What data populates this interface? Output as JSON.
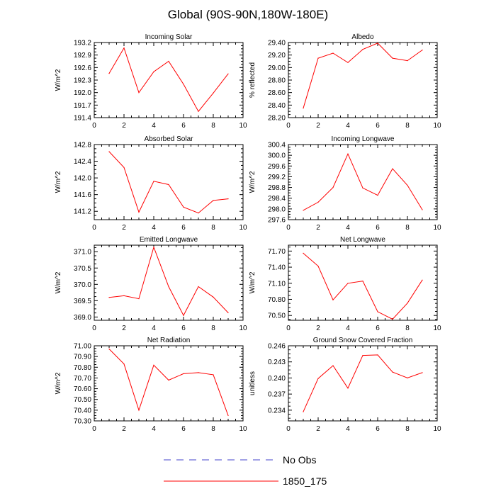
{
  "figure_title": "Global (90S-90N,180W-180E)",
  "legend": [
    {
      "label": "No Obs",
      "color": "#4444cc",
      "style": "dashed"
    },
    {
      "label": "1850_175",
      "color": "#ff0000",
      "style": "solid"
    }
  ],
  "chart_data": [
    {
      "type": "line",
      "title": "Incoming Solar",
      "xlabel": "",
      "ylabel": "W/m^2",
      "xlim": [
        0,
        10
      ],
      "ylim": [
        191.4,
        193.2
      ],
      "xticks": [
        0,
        2,
        4,
        6,
        8,
        10
      ],
      "yticks": [
        191.4,
        191.7,
        192.0,
        192.3,
        192.6,
        192.9,
        193.2
      ],
      "ytick_labels": [
        "191.4",
        "191.7",
        "192.0",
        "192.3",
        "192.6",
        "192.9",
        "193.2"
      ],
      "x": [
        1,
        2,
        3,
        4,
        5,
        6,
        7,
        8,
        9
      ],
      "series": [
        {
          "name": "1850_175",
          "values": [
            192.46,
            193.07,
            192.0,
            192.5,
            192.75,
            192.2,
            191.55,
            191.99,
            192.45
          ]
        }
      ]
    },
    {
      "type": "line",
      "title": "Albedo",
      "xlabel": "",
      "ylabel": "% reflected",
      "xlim": [
        0,
        10
      ],
      "ylim": [
        28.2,
        29.4
      ],
      "xticks": [
        0,
        2,
        4,
        6,
        8,
        10
      ],
      "yticks": [
        28.2,
        28.4,
        28.6,
        28.8,
        29.0,
        29.2,
        29.4
      ],
      "ytick_labels": [
        "28.20",
        "28.40",
        "28.60",
        "28.80",
        "29.00",
        "29.20",
        "29.40"
      ],
      "x": [
        1,
        2,
        3,
        4,
        5,
        6,
        7,
        8,
        9
      ],
      "series": [
        {
          "name": "1850_175",
          "values": [
            28.35,
            29.15,
            29.23,
            29.08,
            29.29,
            29.39,
            29.15,
            29.11,
            29.28
          ]
        }
      ]
    },
    {
      "type": "line",
      "title": "Absorbed Solar",
      "xlabel": "",
      "ylabel": "W/m^2",
      "xlim": [
        0,
        10
      ],
      "ylim": [
        141.0,
        142.8
      ],
      "xticks": [
        0,
        2,
        4,
        6,
        8,
        10
      ],
      "yticks": [
        141.2,
        141.6,
        142.0,
        142.4,
        142.8
      ],
      "ytick_labels": [
        "141.2",
        "141.6",
        "142.0",
        "142.4",
        "142.8"
      ],
      "x": [
        1,
        2,
        3,
        4,
        5,
        6,
        7,
        8,
        9
      ],
      "series": [
        {
          "name": "1850_175",
          "values": [
            142.63,
            142.25,
            141.18,
            141.92,
            141.84,
            141.3,
            141.16,
            141.46,
            141.5
          ]
        }
      ]
    },
    {
      "type": "line",
      "title": "Incoming Longwave",
      "xlabel": "",
      "ylabel": "W/m^2",
      "xlim": [
        0,
        10
      ],
      "ylim": [
        297.6,
        300.4
      ],
      "xticks": [
        0,
        2,
        4,
        6,
        8,
        10
      ],
      "yticks": [
        297.6,
        298.0,
        298.4,
        298.8,
        299.2,
        299.6,
        300.0,
        300.4
      ],
      "ytick_labels": [
        "297.6",
        "298.0",
        "298.4",
        "298.8",
        "299.2",
        "299.6",
        "300.0",
        "300.4"
      ],
      "x": [
        1,
        2,
        3,
        4,
        5,
        6,
        7,
        8,
        9
      ],
      "series": [
        {
          "name": "1850_175",
          "values": [
            297.95,
            298.25,
            298.8,
            300.05,
            298.78,
            298.51,
            299.5,
            298.88,
            297.97
          ]
        }
      ]
    },
    {
      "type": "line",
      "title": "Emitted Longwave",
      "xlabel": "",
      "ylabel": "W/m^2",
      "xlim": [
        0,
        10
      ],
      "ylim": [
        368.9,
        371.2
      ],
      "xticks": [
        0,
        2,
        4,
        6,
        8,
        10
      ],
      "yticks": [
        369.0,
        369.5,
        370.0,
        370.5,
        371.0
      ],
      "ytick_labels": [
        "369.0",
        "369.5",
        "370.0",
        "370.5",
        "371.0"
      ],
      "x": [
        1,
        2,
        3,
        4,
        5,
        6,
        7,
        8,
        9
      ],
      "series": [
        {
          "name": "1850_175",
          "values": [
            369.6,
            369.65,
            369.56,
            371.14,
            369.93,
            369.05,
            369.93,
            369.61,
            369.13
          ]
        }
      ]
    },
    {
      "type": "line",
      "title": "Net Longwave",
      "xlabel": "",
      "ylabel": "W/m^2",
      "xlim": [
        0,
        10
      ],
      "ylim": [
        70.41,
        71.81
      ],
      "xticks": [
        0,
        2,
        4,
        6,
        8,
        10
      ],
      "yticks": [
        70.5,
        70.8,
        71.1,
        71.4,
        71.7
      ],
      "ytick_labels": [
        "70.50",
        "70.80",
        "71.10",
        "71.40",
        "71.70"
      ],
      "x": [
        1,
        2,
        3,
        4,
        5,
        6,
        7,
        8,
        9
      ],
      "series": [
        {
          "name": "1850_175",
          "values": [
            71.66,
            71.42,
            70.79,
            71.1,
            71.14,
            70.57,
            70.43,
            70.73,
            71.16
          ]
        }
      ]
    },
    {
      "type": "line",
      "title": "Net Radiation",
      "xlabel": "",
      "ylabel": "W/m^2",
      "xlim": [
        0,
        10
      ],
      "ylim": [
        70.3,
        71.0
      ],
      "xticks": [
        0,
        2,
        4,
        6,
        8,
        10
      ],
      "yticks": [
        70.3,
        70.4,
        70.5,
        70.6,
        70.7,
        70.8,
        70.9,
        71.0
      ],
      "ytick_labels": [
        "70.30",
        "70.40",
        "70.50",
        "70.60",
        "70.70",
        "70.80",
        "70.90",
        "71.00"
      ],
      "x": [
        1,
        2,
        3,
        4,
        5,
        6,
        7,
        8,
        9
      ],
      "series": [
        {
          "name": "1850_175",
          "values": [
            70.97,
            70.83,
            70.4,
            70.82,
            70.68,
            70.74,
            70.75,
            70.73,
            70.35
          ]
        }
      ]
    },
    {
      "type": "line",
      "title": "Ground Snow Covered Fraction",
      "xlabel": "",
      "ylabel": "unitless",
      "xlim": [
        0,
        10
      ],
      "ylim": [
        0.232,
        0.246
      ],
      "xticks": [
        0,
        2,
        4,
        6,
        8,
        10
      ],
      "yticks": [
        0.234,
        0.237,
        0.24,
        0.243,
        0.246
      ],
      "ytick_labels": [
        "0.234",
        "0.237",
        "0.240",
        "0.243",
        "0.246"
      ],
      "x": [
        1,
        2,
        3,
        4,
        5,
        6,
        7,
        8,
        9
      ],
      "series": [
        {
          "name": "1850_175",
          "values": [
            0.2337,
            0.2399,
            0.2423,
            0.2381,
            0.2442,
            0.2443,
            0.2411,
            0.24,
            0.241
          ]
        }
      ]
    }
  ]
}
